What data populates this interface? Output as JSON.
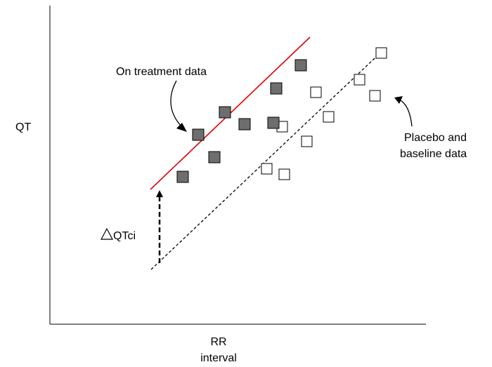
{
  "axes": {
    "y_label": "QT",
    "x_label_line1": "RR",
    "x_label_line2": "interval"
  },
  "annotations": {
    "treatment_label": "On treatment data",
    "placebo_label_line1": "Placebo and",
    "placebo_label_line2": "baseline data",
    "delta_label": "QTci"
  },
  "colors": {
    "treatment_line": "#e00000",
    "treatment_marker": "#6e6e6e",
    "placebo_marker": "#ffffff",
    "axis": "#000000"
  },
  "icons": {
    "delta": "triangle-icon"
  }
}
